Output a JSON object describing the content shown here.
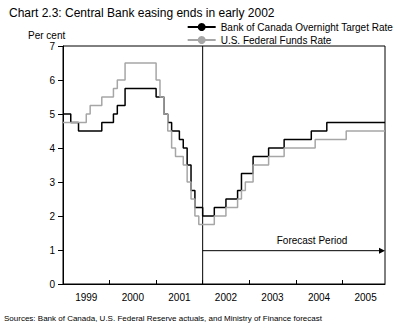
{
  "chart_data": {
    "type": "line",
    "title": "Chart 2.3: Central Bank easing ends in early 2002",
    "ylabel": "Per cent",
    "source": "Sources: Bank of Canada, U.S. Federal Reserve actuals, and Ministry of Finance forecast",
    "categories": [
      null,
      null,
      null,
      null,
      null,
      null,
      "1999",
      null,
      null,
      null,
      null,
      null,
      null,
      null,
      null,
      null,
      null,
      null,
      "2000",
      null,
      null,
      null,
      null,
      null,
      null,
      null,
      null,
      null,
      null,
      null,
      "2001",
      null,
      null,
      null,
      null,
      null,
      null,
      null,
      null,
      null,
      null,
      null,
      "2002",
      null,
      null,
      null,
      null,
      null,
      null,
      null,
      null,
      null,
      null,
      null,
      "2003",
      null,
      null,
      null,
      null,
      null,
      null,
      null,
      null,
      null,
      null,
      null,
      "2004",
      null,
      null,
      null,
      null,
      null,
      null,
      null,
      null,
      null,
      null,
      null,
      "2005",
      null,
      null,
      null,
      null,
      null
    ],
    "series": [
      {
        "name": "Bank of Canada Overnight Target Rate",
        "color": "#000000",
        "line_style": "solid",
        "values": [
          5,
          5,
          4.75,
          4.75,
          4.5,
          4.5,
          4.5,
          4.5,
          4.5,
          4.5,
          4.75,
          4.75,
          4.75,
          5,
          5.25,
          5.25,
          5.75,
          5.75,
          5.75,
          5.75,
          5.75,
          5.75,
          5.75,
          5.75,
          5.5,
          5.5,
          5,
          4.75,
          4.5,
          4.5,
          4.25,
          4,
          3.5,
          2.75,
          2.25,
          2.25,
          2,
          2,
          2,
          2.25,
          2.25,
          2.25,
          2.5,
          2.5,
          2.5,
          2.75,
          3.25,
          3.25,
          3.25,
          3.75,
          3.75,
          3.75,
          3.75,
          4,
          4,
          4,
          4,
          4.25,
          4.25,
          4.25,
          4.25,
          4.25,
          4.25,
          4.25,
          4.5,
          4.5,
          4.5,
          4.5,
          4.75,
          4.75,
          4.75,
          4.75,
          4.75,
          4.75,
          4.75,
          4.75,
          4.75,
          4.75,
          4.75,
          4.75,
          4.75,
          4.75,
          4.75,
          4.75
        ]
      },
      {
        "name": "U.S. Federal Funds Rate",
        "color": "#a6a6a6",
        "line_style": "solid",
        "values": [
          4.75,
          4.75,
          4.75,
          4.75,
          4.75,
          4.75,
          5,
          5.25,
          5.25,
          5.25,
          5.5,
          5.5,
          5.5,
          5.75,
          6,
          6,
          6.5,
          6.5,
          6.5,
          6.5,
          6.5,
          6.5,
          6.5,
          6.5,
          6,
          5.5,
          5,
          4.5,
          4,
          3.75,
          3.75,
          3.5,
          3,
          2.5,
          2,
          1.75,
          1.75,
          1.75,
          1.75,
          2,
          2,
          2,
          2.25,
          2.25,
          2.25,
          2.5,
          2.75,
          3,
          3,
          3.5,
          3.5,
          3.5,
          3.5,
          3.75,
          3.75,
          3.75,
          3.75,
          4,
          4,
          4,
          4,
          4,
          4,
          4,
          4,
          4.25,
          4.25,
          4.25,
          4.25,
          4.25,
          4.25,
          4.25,
          4.25,
          4.5,
          4.5,
          4.5,
          4.5,
          4.5,
          4.5,
          4.5,
          4.5,
          4.5,
          4.5,
          4.5
        ]
      }
    ],
    "annotations": [
      {
        "text": "Forecast Period",
        "position": 36
      }
    ],
    "ylim": [
      0,
      7
    ],
    "yticks": [
      0,
      1,
      2,
      3,
      4,
      5,
      6,
      7
    ],
    "grid": false,
    "legend": "upper right"
  }
}
